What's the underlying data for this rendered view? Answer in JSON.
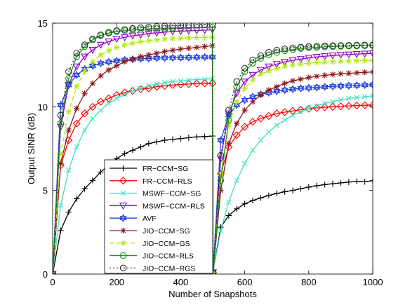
{
  "chart_data": {
    "type": "line",
    "title": "",
    "xlabel": "Number of Snapshots",
    "ylabel": "Output SINR (dB)",
    "xlim": [
      0,
      1000
    ],
    "ylim": [
      0,
      15
    ],
    "xticks": [
      0,
      200,
      400,
      600,
      800,
      1000
    ],
    "yticks": [
      0,
      5,
      10,
      15
    ],
    "grid": false,
    "legend_position": "bottom-left",
    "series": [
      {
        "name": "FR−CCM−SG",
        "color": "#000000",
        "marker": "plus",
        "dash": "",
        "x": [
          0,
          25,
          50,
          75,
          100,
          125,
          150,
          175,
          200,
          225,
          250,
          275,
          300,
          325,
          350,
          375,
          400,
          425,
          450,
          475,
          499,
          501,
          525,
          550,
          575,
          600,
          625,
          650,
          675,
          700,
          725,
          750,
          775,
          800,
          825,
          850,
          875,
          900,
          925,
          950,
          975,
          1000
        ],
        "y": [
          0,
          2.6,
          3.7,
          4.5,
          5.1,
          5.6,
          6.1,
          6.5,
          6.9,
          7.2,
          7.4,
          7.6,
          7.8,
          7.9,
          8.0,
          8.05,
          8.1,
          8.15,
          8.2,
          8.22,
          8.25,
          0.1,
          2.8,
          3.5,
          3.9,
          4.2,
          4.4,
          4.55,
          4.7,
          4.82,
          4.92,
          5.0,
          5.1,
          5.2,
          5.28,
          5.35,
          5.4,
          5.45,
          5.5,
          5.55,
          5.52,
          5.58
        ]
      },
      {
        "name": "FR−CCM−RLS",
        "color": "#ff0000",
        "marker": "diamond",
        "dash": "",
        "x": [
          0,
          25,
          50,
          75,
          100,
          125,
          150,
          175,
          200,
          225,
          250,
          275,
          300,
          325,
          350,
          375,
          400,
          425,
          450,
          475,
          499,
          501,
          525,
          550,
          575,
          600,
          625,
          650,
          675,
          700,
          725,
          750,
          775,
          800,
          825,
          850,
          875,
          900,
          925,
          950,
          975,
          1000
        ],
        "y": [
          0,
          6.5,
          8.0,
          9.0,
          9.6,
          10.0,
          10.3,
          10.5,
          10.7,
          10.85,
          10.95,
          11.05,
          11.1,
          11.2,
          11.25,
          11.3,
          11.33,
          11.36,
          11.38,
          11.4,
          11.4,
          0.1,
          6.0,
          7.6,
          8.3,
          8.8,
          9.1,
          9.3,
          9.45,
          9.6,
          9.68,
          9.75,
          9.82,
          9.88,
          9.93,
          9.97,
          10.0,
          10.03,
          10.05,
          10.07,
          10.09,
          10.1
        ]
      },
      {
        "name": "MSWF−CCM−SG",
        "color": "#40e0c0",
        "marker": "x",
        "dash": "",
        "x": [
          0,
          25,
          50,
          75,
          100,
          125,
          150,
          175,
          200,
          225,
          250,
          275,
          300,
          325,
          350,
          375,
          400,
          425,
          450,
          475,
          499,
          501,
          525,
          550,
          575,
          600,
          625,
          650,
          675,
          700,
          725,
          750,
          775,
          800,
          825,
          850,
          875,
          900,
          925,
          950,
          975,
          1000
        ],
        "y": [
          0,
          4.1,
          6.2,
          7.6,
          8.6,
          9.3,
          9.8,
          10.2,
          10.5,
          10.75,
          10.95,
          11.1,
          11.25,
          11.35,
          11.45,
          11.5,
          11.55,
          11.6,
          11.62,
          11.65,
          11.67,
          0.1,
          2.6,
          4.3,
          5.6,
          6.6,
          7.4,
          8.0,
          8.5,
          8.9,
          9.2,
          9.5,
          9.7,
          9.9,
          10.05,
          10.2,
          10.3,
          10.4,
          10.5,
          10.55,
          10.6,
          10.65
        ]
      },
      {
        "name": "MSWF−CCM−RLS",
        "color": "#9400d3",
        "marker": "triangle-down",
        "dash": "",
        "x": [
          0,
          25,
          50,
          75,
          100,
          125,
          150,
          175,
          200,
          225,
          250,
          275,
          300,
          325,
          350,
          375,
          400,
          425,
          450,
          475,
          499,
          501,
          525,
          550,
          575,
          600,
          625,
          650,
          675,
          700,
          725,
          750,
          775,
          800,
          825,
          850,
          875,
          900,
          925,
          950,
          975,
          1000
        ],
        "y": [
          0,
          8.8,
          11.3,
          12.4,
          13.0,
          13.4,
          13.7,
          13.9,
          14.05,
          14.15,
          14.25,
          14.3,
          14.38,
          14.42,
          14.46,
          14.5,
          14.52,
          14.54,
          14.56,
          14.58,
          14.6,
          0.1,
          6.9,
          9.6,
          10.8,
          11.5,
          11.9,
          12.2,
          12.4,
          12.55,
          12.68,
          12.78,
          12.85,
          12.92,
          12.98,
          13.02,
          13.06,
          13.1,
          13.12,
          13.15,
          13.17,
          13.2
        ]
      },
      {
        "name": "AVF",
        "color": "#1f3fe0",
        "marker": "star",
        "dash": "",
        "x": [
          0,
          25,
          50,
          75,
          100,
          125,
          150,
          175,
          200,
          225,
          250,
          275,
          300,
          325,
          350,
          375,
          400,
          425,
          450,
          475,
          499,
          501,
          525,
          550,
          575,
          600,
          625,
          650,
          675,
          700,
          725,
          750,
          775,
          800,
          825,
          850,
          875,
          900,
          925,
          950,
          975,
          1000
        ],
        "y": [
          0,
          10.1,
          11.3,
          11.9,
          12.25,
          12.45,
          12.6,
          12.68,
          12.75,
          12.8,
          12.84,
          12.87,
          12.89,
          12.91,
          12.92,
          12.93,
          12.94,
          12.95,
          12.96,
          12.97,
          12.97,
          0.1,
          8.0,
          9.5,
          10.1,
          10.4,
          10.6,
          10.75,
          10.85,
          10.93,
          11.0,
          11.05,
          11.1,
          11.13,
          11.16,
          11.19,
          11.22,
          11.24,
          11.26,
          11.28,
          11.3,
          11.32
        ]
      },
      {
        "name": "JIO−CCM−SG",
        "color": "#8b1a1a",
        "marker": "asterisk",
        "dash": "",
        "x": [
          0,
          25,
          50,
          75,
          100,
          125,
          150,
          175,
          200,
          225,
          250,
          275,
          300,
          325,
          350,
          375,
          400,
          425,
          450,
          475,
          499,
          501,
          525,
          550,
          575,
          600,
          625,
          650,
          675,
          700,
          725,
          750,
          775,
          800,
          825,
          850,
          875,
          900,
          925,
          950,
          975,
          1000
        ],
        "y": [
          0,
          6.6,
          8.6,
          9.9,
          10.8,
          11.4,
          11.85,
          12.2,
          12.45,
          12.7,
          12.85,
          13.0,
          13.1,
          13.2,
          13.3,
          13.38,
          13.45,
          13.5,
          13.55,
          13.6,
          13.65,
          0.1,
          5.0,
          7.8,
          9.0,
          9.8,
          10.3,
          10.7,
          11.0,
          11.2,
          11.4,
          11.55,
          11.65,
          11.75,
          11.82,
          11.88,
          11.93,
          11.97,
          12.0,
          12.03,
          12.06,
          12.08
        ]
      },
      {
        "name": "JIO−CCM−GS",
        "color": "#b5e61d",
        "marker": "asterisk",
        "dash": "6,4",
        "x": [
          0,
          25,
          50,
          75,
          100,
          125,
          150,
          175,
          200,
          225,
          250,
          275,
          300,
          325,
          350,
          375,
          400,
          425,
          450,
          475,
          499,
          501,
          525,
          550,
          575,
          600,
          625,
          650,
          675,
          700,
          725,
          750,
          775,
          800,
          825,
          850,
          875,
          900,
          925,
          950,
          975,
          1000
        ],
        "y": [
          0,
          7.2,
          9.7,
          11.2,
          12.1,
          12.7,
          13.1,
          13.35,
          13.55,
          13.7,
          13.8,
          13.88,
          13.95,
          14.0,
          14.05,
          14.08,
          14.1,
          14.12,
          14.14,
          14.15,
          14.16,
          0.1,
          6.0,
          8.9,
          10.3,
          11.1,
          11.6,
          11.95,
          12.15,
          12.3,
          12.42,
          12.5,
          12.56,
          12.6,
          12.64,
          12.67,
          12.7,
          12.72,
          12.74,
          12.75,
          12.76,
          12.77
        ]
      },
      {
        "name": "JIO−CCM−RLS",
        "color": "#1a9a1a",
        "marker": "circle",
        "dash": "",
        "x": [
          0,
          25,
          50,
          75,
          100,
          125,
          150,
          175,
          200,
          225,
          250,
          275,
          300,
          325,
          350,
          375,
          400,
          425,
          450,
          475,
          499,
          501,
          525,
          550,
          575,
          600,
          625,
          650,
          675,
          700,
          725,
          750,
          775,
          800,
          825,
          850,
          875,
          900,
          925,
          950,
          975,
          1000
        ],
        "y": [
          0,
          9.0,
          11.7,
          13.0,
          13.6,
          14.0,
          14.25,
          14.4,
          14.5,
          14.55,
          14.6,
          14.63,
          14.66,
          14.68,
          14.7,
          14.71,
          14.72,
          14.73,
          14.74,
          14.75,
          14.75,
          0.1,
          5.6,
          9.2,
          11.2,
          12.1,
          12.6,
          12.9,
          13.1,
          13.25,
          13.35,
          13.42,
          13.48,
          13.52,
          13.55,
          13.58,
          13.6,
          13.62,
          13.63,
          13.64,
          13.65,
          13.66
        ]
      },
      {
        "name": "JIO−CCM−RGS",
        "color": "#333333",
        "marker": "circle",
        "dash": "2,3",
        "x": [
          0,
          25,
          50,
          75,
          100,
          125,
          150,
          175,
          200,
          225,
          250,
          275,
          300,
          325,
          350,
          375,
          400,
          425,
          450,
          475,
          499,
          501,
          525,
          550,
          575,
          600,
          625,
          650,
          675,
          700,
          725,
          750,
          775,
          800,
          825,
          850,
          875,
          900,
          925,
          950,
          975,
          1000
        ],
        "y": [
          0,
          9.5,
          12.1,
          13.2,
          13.7,
          14.05,
          14.3,
          14.45,
          14.55,
          14.62,
          14.68,
          14.72,
          14.76,
          14.8,
          14.82,
          14.84,
          14.86,
          14.88,
          14.9,
          14.91,
          14.92,
          0.1,
          7.1,
          9.8,
          11.5,
          12.3,
          12.8,
          13.05,
          13.25,
          13.38,
          13.46,
          13.52,
          13.56,
          13.6,
          13.62,
          13.64,
          13.65,
          13.66,
          13.67,
          13.68,
          13.69,
          13.7
        ]
      }
    ]
  }
}
